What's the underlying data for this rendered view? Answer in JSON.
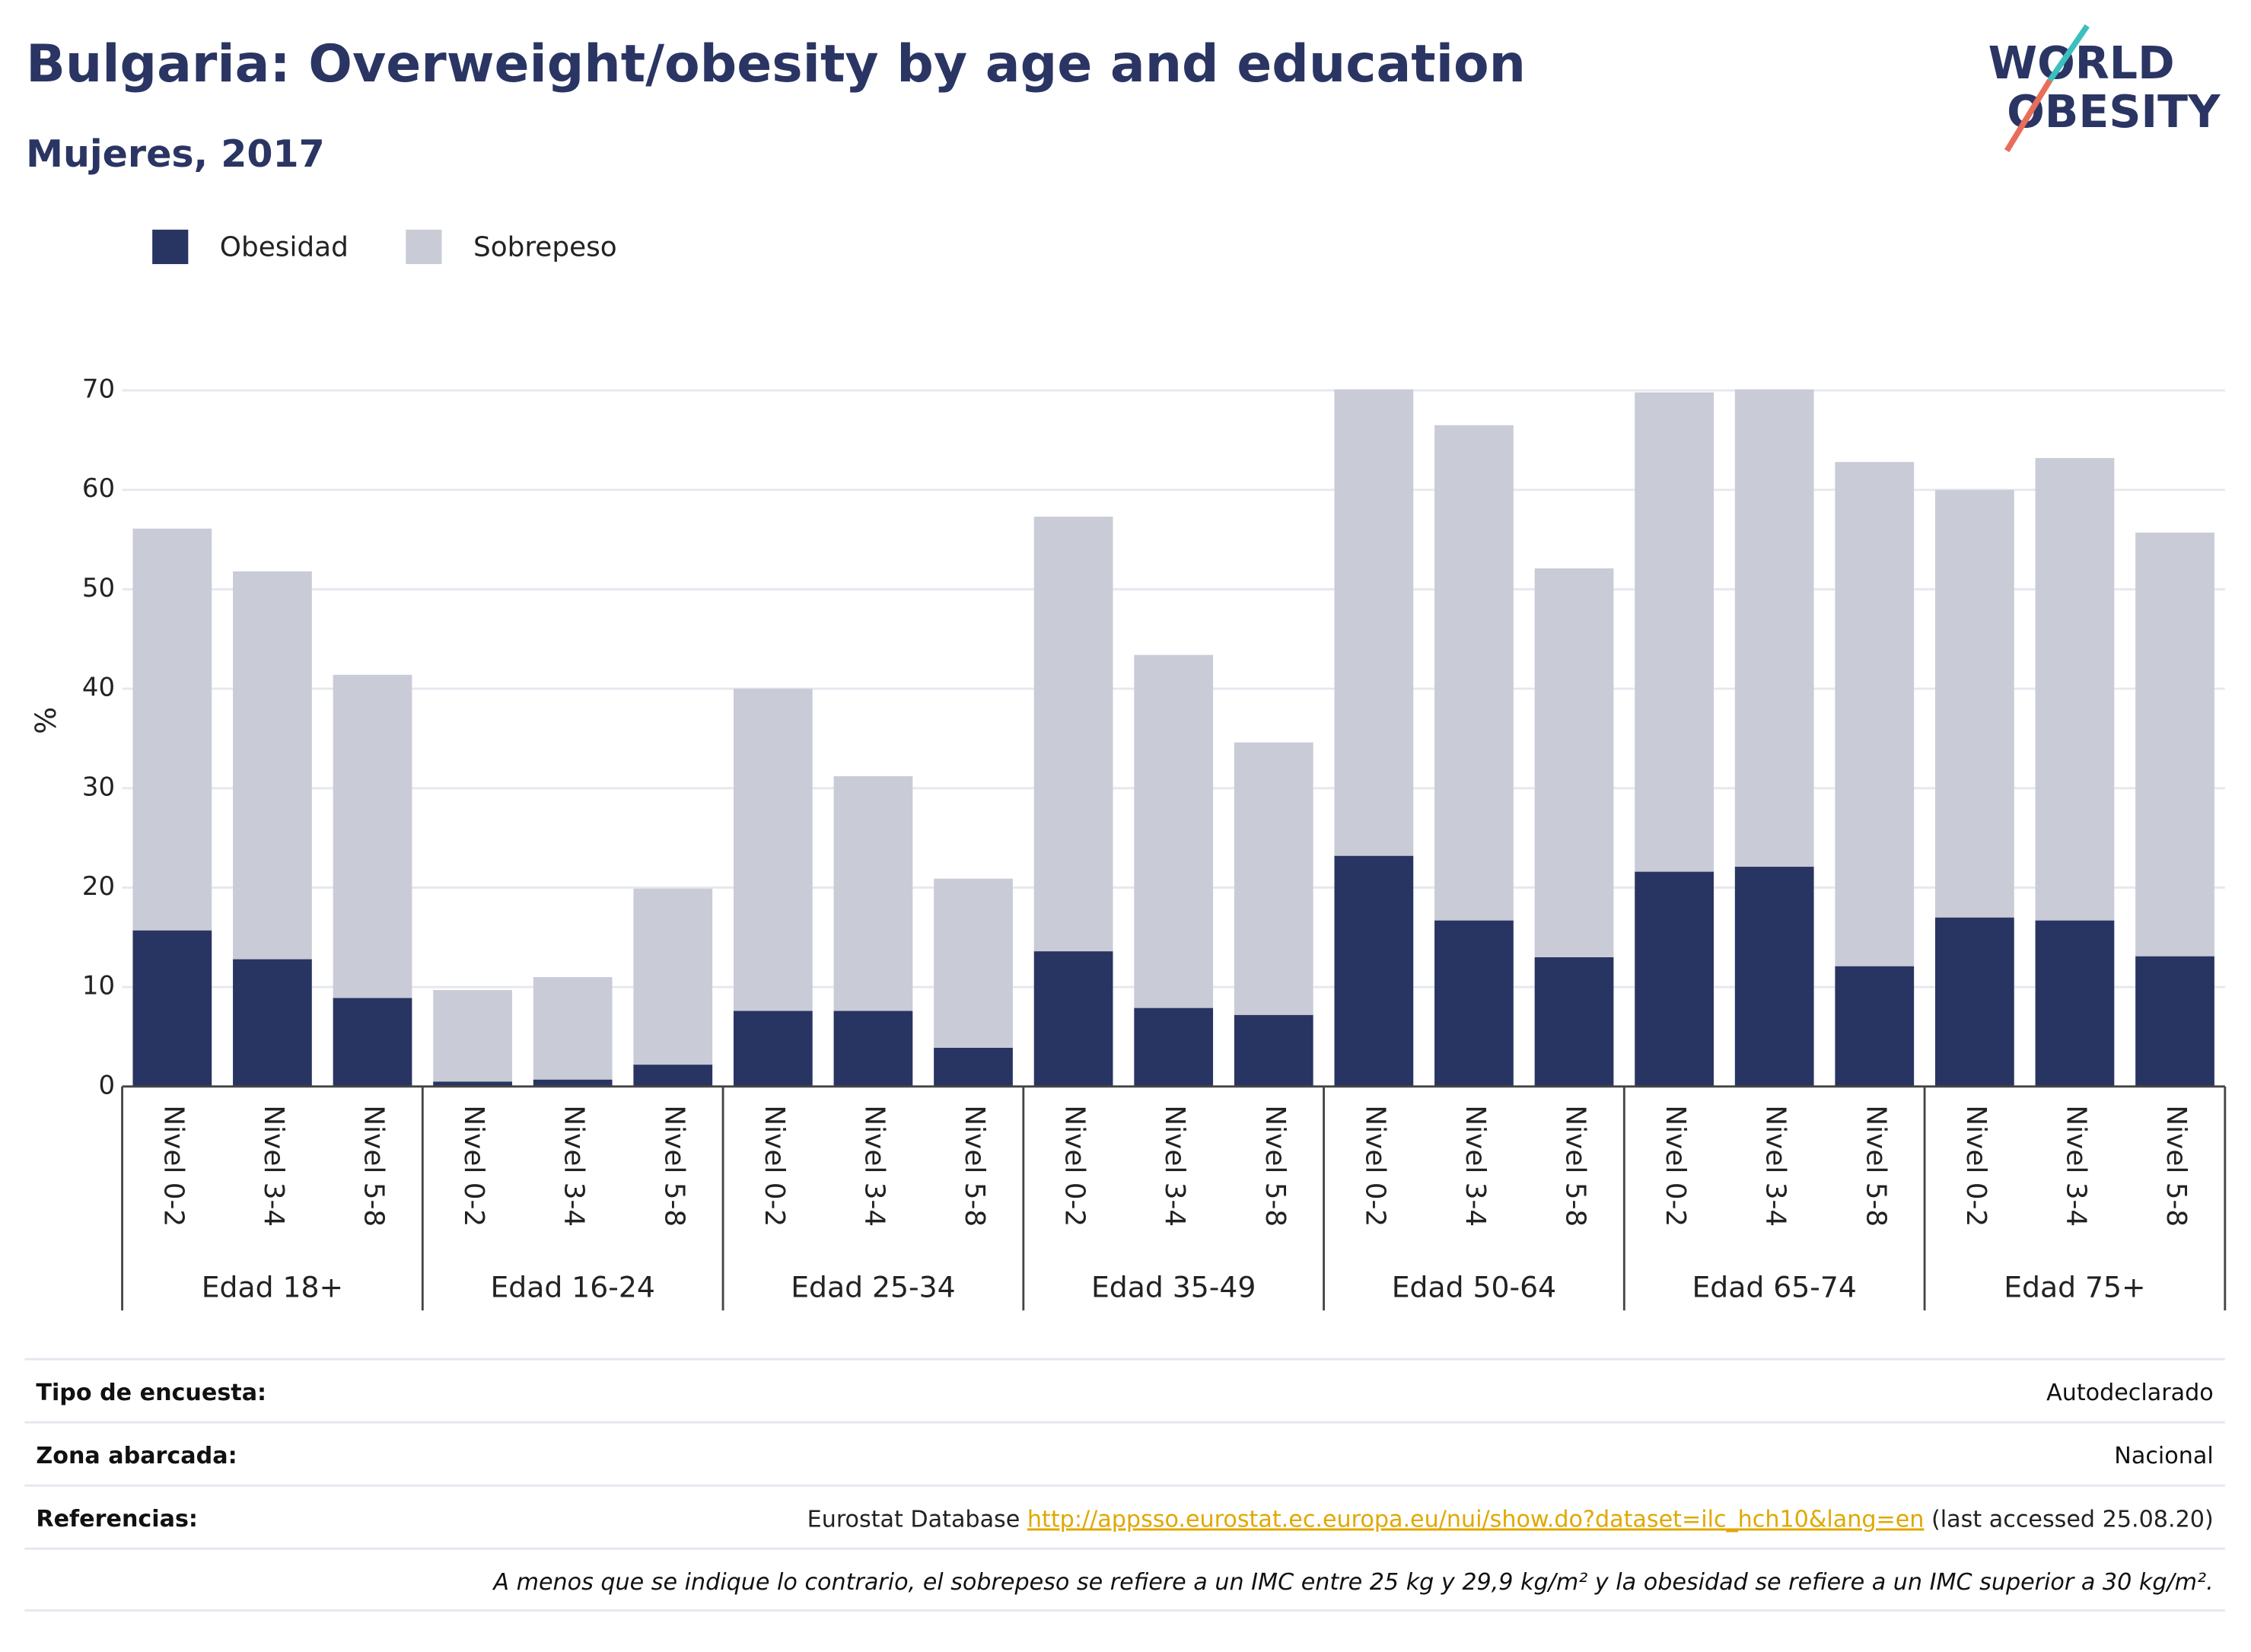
{
  "chart_data": {
    "type": "stacked-bar",
    "title": "Bulgaria: Overweight/obesity by age and education",
    "subtitle": "Mujeres, 2017",
    "y_label": "%",
    "categories": [
      "Nivel 0-2",
      "Nivel 3-4",
      "Nivel 5-8",
      "Nivel 0-2",
      "Nivel 3-4",
      "Nivel 5-8",
      "Nivel 0-2",
      "Nivel 3-4",
      "Nivel 5-8",
      "Nivel 0-2",
      "Nivel 3-4",
      "Nivel 5-8",
      "Nivel 0-2",
      "Nivel 3-4",
      "Nivel 5-8",
      "Nivel 0-2",
      "Nivel 3-4",
      "Nivel 5-8",
      "Nivel 0-2",
      "Nivel 3-4",
      "Nivel 5-8"
    ],
    "groups": [
      "Edad 18+",
      "Edad 16-24",
      "Edad 25-34",
      "Edad 35-49",
      "Edad 50-64",
      "Edad 65-74",
      "Edad 75+"
    ],
    "series": [
      {
        "name": "Obesidad",
        "color": "#283562",
        "values": [
          15.7,
          12.8,
          8.9,
          0.5,
          0.7,
          2.2,
          7.6,
          7.6,
          3.9,
          13.6,
          7.9,
          7.2,
          23.2,
          16.7,
          13.0,
          21.6,
          22.1,
          12.1,
          17.0,
          16.7,
          13.1
        ]
      },
      {
        "name": "Sobrepeso",
        "color": "#c9cbd7",
        "values": [
          40.4,
          39.0,
          32.5,
          9.2,
          10.3,
          17.7,
          32.4,
          23.6,
          17.0,
          43.7,
          35.5,
          27.4,
          46.9,
          49.8,
          39.1,
          48.2,
          48.0,
          50.7,
          43.0,
          46.5,
          42.6
        ]
      }
    ],
    "ylim": [
      0,
      70
    ],
    "yticks": [
      0,
      10,
      20,
      30,
      40,
      50,
      60,
      70
    ],
    "grid": true
  },
  "logo": [
    "WORLD",
    "OBESITY"
  ],
  "footer": {
    "rows": [
      [
        "Tipo de encuesta:",
        "Autodeclarado"
      ],
      [
        "Zona abarcada:",
        "Nacional"
      ]
    ],
    "reference": {
      "label": "Referencias:",
      "prefix": "Eurostat Database ",
      "link": "http://appsso.eurostat.ec.europa.eu/nui/show.do?dataset=ilc_hch10&lang=en",
      "suffix": " (last accessed 25.08.20)"
    },
    "note": "A menos que se indique lo contrario, el sobrepeso se refiere a un IMC entre 25 kg y 29,9 kg/m² y la obesidad se refiere a un IMC superior a 30 kg/m²."
  }
}
